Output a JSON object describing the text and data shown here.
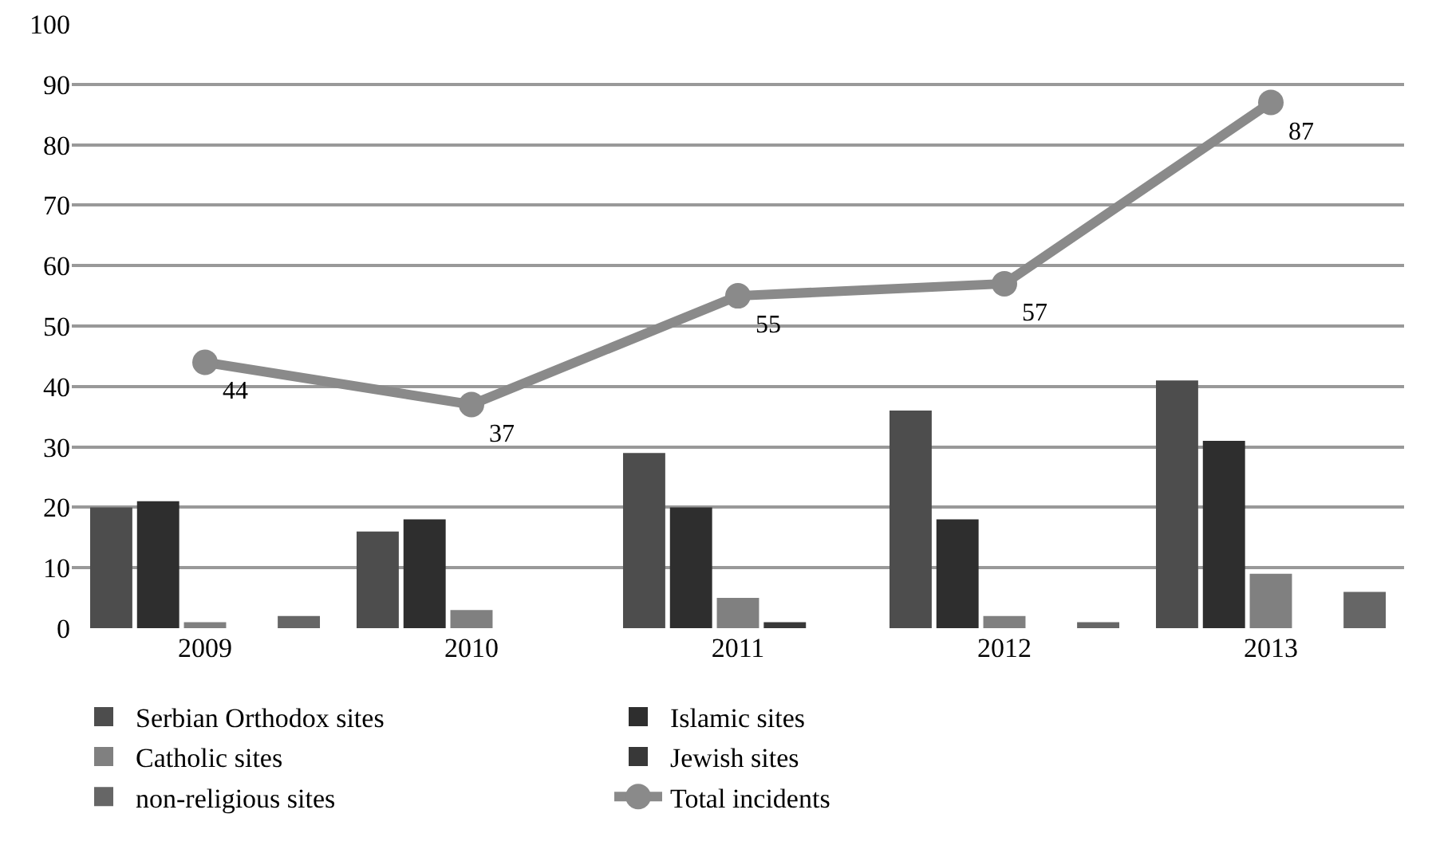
{
  "chart_data": {
    "type": "bar",
    "categories": [
      "2009",
      "2010",
      "2011",
      "2012",
      "2013"
    ],
    "series": [
      {
        "name": "Serbian Orthodox sites",
        "color": "#4d4d4d",
        "values": [
          20,
          16,
          29,
          36,
          41
        ]
      },
      {
        "name": "Islamic sites",
        "color": "#2e2e2e",
        "values": [
          21,
          18,
          20,
          18,
          31
        ]
      },
      {
        "name": "Catholic sites",
        "color": "#808080",
        "values": [
          1,
          3,
          5,
          2,
          9
        ]
      },
      {
        "name": "Jewish sites",
        "color": "#383838",
        "values": [
          0,
          0,
          1,
          0,
          0
        ]
      },
      {
        "name": "non-religious sites",
        "color": "#666666",
        "values": [
          2,
          0,
          0,
          1,
          6
        ]
      },
      {
        "name": "Total incidents",
        "type": "line",
        "color": "#8a8a8a",
        "marker": "circle",
        "values": [
          44,
          37,
          55,
          57,
          87
        ],
        "value_labels": [
          "44",
          "37",
          "55",
          "57",
          "87"
        ]
      }
    ],
    "ylim": [
      0,
      100
    ],
    "yticks": [
      0,
      10,
      20,
      30,
      40,
      50,
      60,
      70,
      80,
      90,
      100
    ],
    "grid": "y",
    "legend": "bottom"
  }
}
